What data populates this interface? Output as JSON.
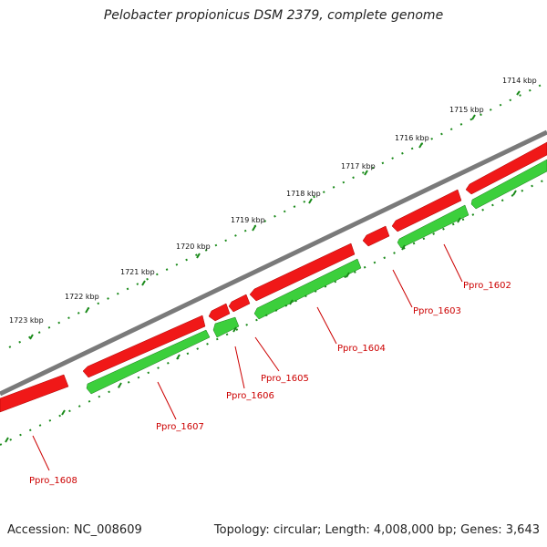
{
  "title": "Pelobacter propionicus DSM 2379, complete genome",
  "footer": {
    "accession": "Accession: NC_008609",
    "summary": "Topology: circular; Length: 4,008,000 bp; Genes: 3,643"
  },
  "colors": {
    "backbone": "#808080",
    "forward_gene": "#ff2020",
    "reverse_gene": "#33cc33",
    "ticks_outer": "#1a8a1a",
    "ticks_inner": "#1a8a1a",
    "label": "#cc0000"
  },
  "kbp_ticks": [
    "1714 kbp",
    "1715 kbp",
    "1716 kbp",
    "1717 kbp",
    "1718 kbp",
    "1719 kbp",
    "1720 kbp",
    "1721 kbp",
    "1722 kbp",
    "1723 kbp"
  ],
  "genes": [
    {
      "name": "Ppro_1602"
    },
    {
      "name": "Ppro_1603"
    },
    {
      "name": "Ppro_1604"
    },
    {
      "name": "Ppro_1605"
    },
    {
      "name": "Ppro_1606"
    },
    {
      "name": "Ppro_1607"
    },
    {
      "name": "Ppro_1608"
    }
  ]
}
